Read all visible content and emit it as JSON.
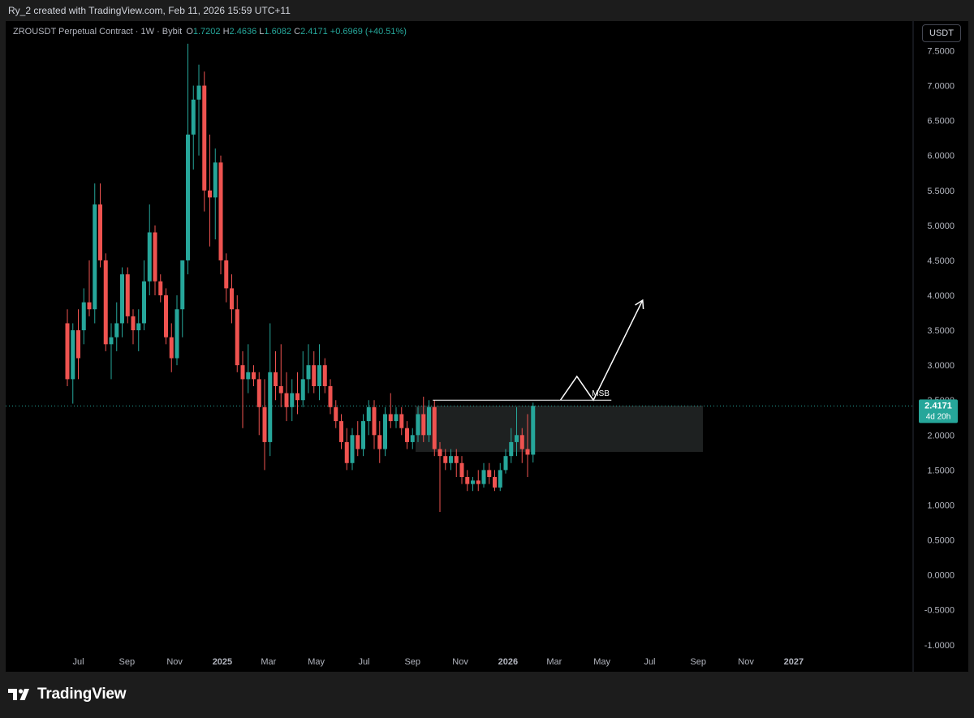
{
  "header": {
    "caption": "Ry_2 created with TradingView.com, Feb 11, 2026 15:59 UTC+11"
  },
  "legend": {
    "symbol": "ZROUSDT Perpetual Contract · 1W · Bybit",
    "o_label": "O",
    "o_value": "1.7202",
    "h_label": "H",
    "h_value": "2.4636",
    "l_label": "L",
    "l_value": "1.6082",
    "c_label": "C",
    "c_value": "2.4171",
    "change": "+0.6969 (+40.51%)"
  },
  "currency_button": "USDT",
  "price_label": {
    "value": "2.4171",
    "countdown": "4d 20h"
  },
  "annotation": {
    "msb": "MSB"
  },
  "footer": {
    "brand": "TradingView"
  },
  "colors": {
    "up": "#26a69a",
    "down": "#ef5350",
    "background": "#000000",
    "axis_text": "#b2b5be",
    "drawing": "#ffffff",
    "zone": "#1e2121"
  },
  "chart_data": {
    "type": "candlestick",
    "symbol": "ZROUSDT",
    "interval": "1W",
    "ylim": [
      -1.2,
      7.9
    ],
    "y_ticks": [
      "7.5000",
      "7.0000",
      "6.5000",
      "6.0000",
      "5.5000",
      "5.0000",
      "4.5000",
      "4.0000",
      "3.5000",
      "3.0000",
      "2.5000",
      "2.0000",
      "1.5000",
      "1.0000",
      "0.5000",
      "0.0000",
      "-0.5000",
      "-1.0000"
    ],
    "x_ticks": [
      {
        "label": "Jul",
        "date": "2024-07-01"
      },
      {
        "label": "Sep",
        "date": "2024-09-01"
      },
      {
        "label": "Nov",
        "date": "2024-11-01"
      },
      {
        "label": "2025",
        "date": "2025-01-01"
      },
      {
        "label": "Mar",
        "date": "2025-03-01"
      },
      {
        "label": "May",
        "date": "2025-05-01"
      },
      {
        "label": "Jul",
        "date": "2025-07-01"
      },
      {
        "label": "Sep",
        "date": "2025-09-01"
      },
      {
        "label": "Nov",
        "date": "2025-11-01"
      },
      {
        "label": "2026",
        "date": "2026-01-01"
      },
      {
        "label": "Mar",
        "date": "2026-03-01"
      },
      {
        "label": "May",
        "date": "2026-05-01"
      },
      {
        "label": "Jul",
        "date": "2026-07-01"
      },
      {
        "label": "Sep",
        "date": "2026-09-01"
      },
      {
        "label": "Nov",
        "date": "2026-11-01"
      },
      {
        "label": "2027",
        "date": "2027-01-01"
      }
    ],
    "candles": [
      {
        "d": "2024-06-17",
        "o": 3.6,
        "h": 3.8,
        "l": 2.7,
        "c": 2.8
      },
      {
        "d": "2024-06-24",
        "o": 2.8,
        "h": 3.6,
        "l": 2.45,
        "c": 3.5
      },
      {
        "d": "2024-07-01",
        "o": 3.5,
        "h": 3.8,
        "l": 2.8,
        "c": 3.1
      },
      {
        "d": "2024-07-08",
        "o": 3.5,
        "h": 4.1,
        "l": 3.3,
        "c": 3.9
      },
      {
        "d": "2024-07-15",
        "o": 3.9,
        "h": 4.5,
        "l": 3.7,
        "c": 3.8
      },
      {
        "d": "2024-07-22",
        "o": 3.8,
        "h": 5.6,
        "l": 3.6,
        "c": 5.3
      },
      {
        "d": "2024-07-29",
        "o": 5.3,
        "h": 5.6,
        "l": 4.4,
        "c": 4.5
      },
      {
        "d": "2024-08-05",
        "o": 4.5,
        "h": 4.6,
        "l": 3.2,
        "c": 3.3
      },
      {
        "d": "2024-08-12",
        "o": 3.3,
        "h": 3.6,
        "l": 2.8,
        "c": 3.4
      },
      {
        "d": "2024-08-19",
        "o": 3.4,
        "h": 3.9,
        "l": 3.2,
        "c": 3.6
      },
      {
        "d": "2024-08-26",
        "o": 3.6,
        "h": 4.4,
        "l": 3.4,
        "c": 4.3
      },
      {
        "d": "2024-09-02",
        "o": 4.3,
        "h": 4.4,
        "l": 3.6,
        "c": 3.7
      },
      {
        "d": "2024-09-09",
        "o": 3.7,
        "h": 3.8,
        "l": 3.3,
        "c": 3.5
      },
      {
        "d": "2024-09-16",
        "o": 3.5,
        "h": 3.8,
        "l": 3.2,
        "c": 3.6
      },
      {
        "d": "2024-09-23",
        "o": 3.6,
        "h": 4.5,
        "l": 3.5,
        "c": 4.2
      },
      {
        "d": "2024-09-30",
        "o": 4.2,
        "h": 5.3,
        "l": 4.0,
        "c": 4.9
      },
      {
        "d": "2024-10-07",
        "o": 4.9,
        "h": 5.0,
        "l": 4.0,
        "c": 4.2
      },
      {
        "d": "2024-10-14",
        "o": 4.2,
        "h": 4.3,
        "l": 3.9,
        "c": 4.0
      },
      {
        "d": "2024-10-21",
        "o": 4.0,
        "h": 4.1,
        "l": 3.3,
        "c": 3.4
      },
      {
        "d": "2024-10-28",
        "o": 3.4,
        "h": 3.6,
        "l": 2.9,
        "c": 3.1
      },
      {
        "d": "2024-11-04",
        "o": 3.1,
        "h": 4.0,
        "l": 3.0,
        "c": 3.8
      },
      {
        "d": "2024-11-11",
        "o": 3.8,
        "h": 4.5,
        "l": 3.4,
        "c": 4.5
      },
      {
        "d": "2024-11-18",
        "o": 4.5,
        "h": 7.6,
        "l": 4.3,
        "c": 6.3
      },
      {
        "d": "2024-11-25",
        "o": 6.3,
        "h": 7.0,
        "l": 5.8,
        "c": 6.8
      },
      {
        "d": "2024-12-02",
        "o": 6.8,
        "h": 7.3,
        "l": 6.0,
        "c": 7.0
      },
      {
        "d": "2024-12-09",
        "o": 7.0,
        "h": 7.2,
        "l": 5.2,
        "c": 5.5
      },
      {
        "d": "2024-12-16",
        "o": 5.5,
        "h": 6.3,
        "l": 4.7,
        "c": 5.4
      },
      {
        "d": "2024-12-23",
        "o": 5.4,
        "h": 6.1,
        "l": 4.8,
        "c": 5.9
      },
      {
        "d": "2024-12-30",
        "o": 5.9,
        "h": 6.0,
        "l": 4.3,
        "c": 4.5
      },
      {
        "d": "2025-01-06",
        "o": 4.5,
        "h": 4.6,
        "l": 3.9,
        "c": 4.1
      },
      {
        "d": "2025-01-13",
        "o": 4.1,
        "h": 4.3,
        "l": 3.6,
        "c": 3.8
      },
      {
        "d": "2025-01-20",
        "o": 3.8,
        "h": 4.0,
        "l": 2.9,
        "c": 3.0
      },
      {
        "d": "2025-01-27",
        "o": 3.0,
        "h": 3.2,
        "l": 2.1,
        "c": 2.8
      },
      {
        "d": "2025-02-03",
        "o": 2.8,
        "h": 3.3,
        "l": 2.6,
        "c": 2.9
      },
      {
        "d": "2025-02-10",
        "o": 2.9,
        "h": 3.0,
        "l": 2.7,
        "c": 2.8
      },
      {
        "d": "2025-02-17",
        "o": 2.8,
        "h": 2.9,
        "l": 2.0,
        "c": 2.4
      },
      {
        "d": "2025-02-24",
        "o": 2.4,
        "h": 2.8,
        "l": 1.5,
        "c": 1.9
      },
      {
        "d": "2025-03-03",
        "o": 1.9,
        "h": 3.6,
        "l": 1.7,
        "c": 2.9
      },
      {
        "d": "2025-03-10",
        "o": 2.9,
        "h": 3.2,
        "l": 2.5,
        "c": 2.7
      },
      {
        "d": "2025-03-17",
        "o": 2.7,
        "h": 3.3,
        "l": 2.4,
        "c": 2.6
      },
      {
        "d": "2025-03-24",
        "o": 2.6,
        "h": 2.9,
        "l": 2.2,
        "c": 2.4
      },
      {
        "d": "2025-03-31",
        "o": 2.4,
        "h": 2.8,
        "l": 2.2,
        "c": 2.6
      },
      {
        "d": "2025-04-07",
        "o": 2.6,
        "h": 2.9,
        "l": 2.3,
        "c": 2.5
      },
      {
        "d": "2025-04-14",
        "o": 2.5,
        "h": 3.2,
        "l": 2.4,
        "c": 2.8
      },
      {
        "d": "2025-04-21",
        "o": 2.8,
        "h": 3.3,
        "l": 2.6,
        "c": 3.0
      },
      {
        "d": "2025-04-28",
        "o": 3.0,
        "h": 3.2,
        "l": 2.6,
        "c": 2.7
      },
      {
        "d": "2025-05-05",
        "o": 2.7,
        "h": 3.3,
        "l": 2.5,
        "c": 3.0
      },
      {
        "d": "2025-05-12",
        "o": 3.0,
        "h": 3.1,
        "l": 2.6,
        "c": 2.7
      },
      {
        "d": "2025-05-19",
        "o": 2.7,
        "h": 2.8,
        "l": 2.3,
        "c": 2.4
      },
      {
        "d": "2025-05-26",
        "o": 2.4,
        "h": 2.5,
        "l": 2.1,
        "c": 2.2
      },
      {
        "d": "2025-06-02",
        "o": 2.2,
        "h": 2.3,
        "l": 1.8,
        "c": 1.9
      },
      {
        "d": "2025-06-09",
        "o": 1.9,
        "h": 2.1,
        "l": 1.5,
        "c": 1.6
      },
      {
        "d": "2025-06-16",
        "o": 1.6,
        "h": 2.1,
        "l": 1.5,
        "c": 2.0
      },
      {
        "d": "2025-06-23",
        "o": 2.0,
        "h": 2.2,
        "l": 1.7,
        "c": 1.8
      },
      {
        "d": "2025-06-30",
        "o": 1.8,
        "h": 2.3,
        "l": 1.7,
        "c": 2.2
      },
      {
        "d": "2025-07-07",
        "o": 2.2,
        "h": 2.5,
        "l": 2.0,
        "c": 2.4
      },
      {
        "d": "2025-07-14",
        "o": 2.4,
        "h": 2.5,
        "l": 1.8,
        "c": 2.0
      },
      {
        "d": "2025-07-21",
        "o": 2.0,
        "h": 2.2,
        "l": 1.6,
        "c": 1.8
      },
      {
        "d": "2025-07-28",
        "o": 1.8,
        "h": 2.4,
        "l": 1.7,
        "c": 2.3
      },
      {
        "d": "2025-08-04",
        "o": 2.3,
        "h": 2.6,
        "l": 2.1,
        "c": 2.2
      },
      {
        "d": "2025-08-11",
        "o": 2.2,
        "h": 2.4,
        "l": 2.1,
        "c": 2.3
      },
      {
        "d": "2025-08-18",
        "o": 2.3,
        "h": 2.4,
        "l": 2.0,
        "c": 2.1
      },
      {
        "d": "2025-08-25",
        "o": 2.1,
        "h": 2.2,
        "l": 1.8,
        "c": 1.9
      },
      {
        "d": "2025-09-01",
        "o": 1.9,
        "h": 2.1,
        "l": 1.8,
        "c": 2.0
      },
      {
        "d": "2025-09-08",
        "o": 2.0,
        "h": 2.4,
        "l": 1.9,
        "c": 2.3
      },
      {
        "d": "2025-09-15",
        "o": 2.3,
        "h": 2.55,
        "l": 1.9,
        "c": 2.0
      },
      {
        "d": "2025-09-22",
        "o": 2.0,
        "h": 2.5,
        "l": 1.9,
        "c": 2.4
      },
      {
        "d": "2025-09-29",
        "o": 2.4,
        "h": 2.5,
        "l": 1.7,
        "c": 1.8
      },
      {
        "d": "2025-10-06",
        "o": 1.8,
        "h": 1.9,
        "l": 0.9,
        "c": 1.7
      },
      {
        "d": "2025-10-13",
        "o": 1.7,
        "h": 1.8,
        "l": 1.5,
        "c": 1.6
      },
      {
        "d": "2025-10-20",
        "o": 1.6,
        "h": 1.8,
        "l": 1.5,
        "c": 1.7
      },
      {
        "d": "2025-10-27",
        "o": 1.7,
        "h": 1.8,
        "l": 1.4,
        "c": 1.6
      },
      {
        "d": "2025-11-03",
        "o": 1.6,
        "h": 1.7,
        "l": 1.3,
        "c": 1.4
      },
      {
        "d": "2025-11-10",
        "o": 1.4,
        "h": 1.5,
        "l": 1.2,
        "c": 1.3
      },
      {
        "d": "2025-11-17",
        "o": 1.3,
        "h": 1.4,
        "l": 1.2,
        "c": 1.35
      },
      {
        "d": "2025-11-24",
        "o": 1.35,
        "h": 1.5,
        "l": 1.2,
        "c": 1.3
      },
      {
        "d": "2025-12-01",
        "o": 1.3,
        "h": 1.6,
        "l": 1.25,
        "c": 1.5
      },
      {
        "d": "2025-12-08",
        "o": 1.5,
        "h": 1.6,
        "l": 1.3,
        "c": 1.4
      },
      {
        "d": "2025-12-15",
        "o": 1.4,
        "h": 1.5,
        "l": 1.2,
        "c": 1.25
      },
      {
        "d": "2025-12-22",
        "o": 1.25,
        "h": 1.6,
        "l": 1.2,
        "c": 1.5
      },
      {
        "d": "2025-12-29",
        "o": 1.5,
        "h": 1.8,
        "l": 1.45,
        "c": 1.7
      },
      {
        "d": "2026-01-05",
        "o": 1.7,
        "h": 2.1,
        "l": 1.6,
        "c": 1.9
      },
      {
        "d": "2026-01-12",
        "o": 1.9,
        "h": 2.4,
        "l": 1.7,
        "c": 2.0
      },
      {
        "d": "2026-01-19",
        "o": 2.0,
        "h": 2.1,
        "l": 1.6,
        "c": 1.8
      },
      {
        "d": "2026-01-26",
        "o": 1.8,
        "h": 2.3,
        "l": 1.4,
        "c": 1.72
      },
      {
        "d": "2026-02-02",
        "o": 1.72,
        "h": 2.4636,
        "l": 1.6082,
        "c": 2.4171
      }
    ],
    "last_price": 2.4171,
    "zone": {
      "from": "2025-09-08",
      "to": "2026-09-07",
      "top": 2.42,
      "bottom": 1.76
    },
    "msb_line": {
      "from": "2025-09-29",
      "to": "2026-05-11",
      "price": 2.5
    },
    "projection_path": [
      {
        "d": "2026-03-09",
        "p": 2.5
      },
      {
        "d": "2026-03-30",
        "p": 2.84
      },
      {
        "d": "2026-04-20",
        "p": 2.5
      },
      {
        "d": "2026-06-22",
        "p": 3.93
      }
    ]
  }
}
